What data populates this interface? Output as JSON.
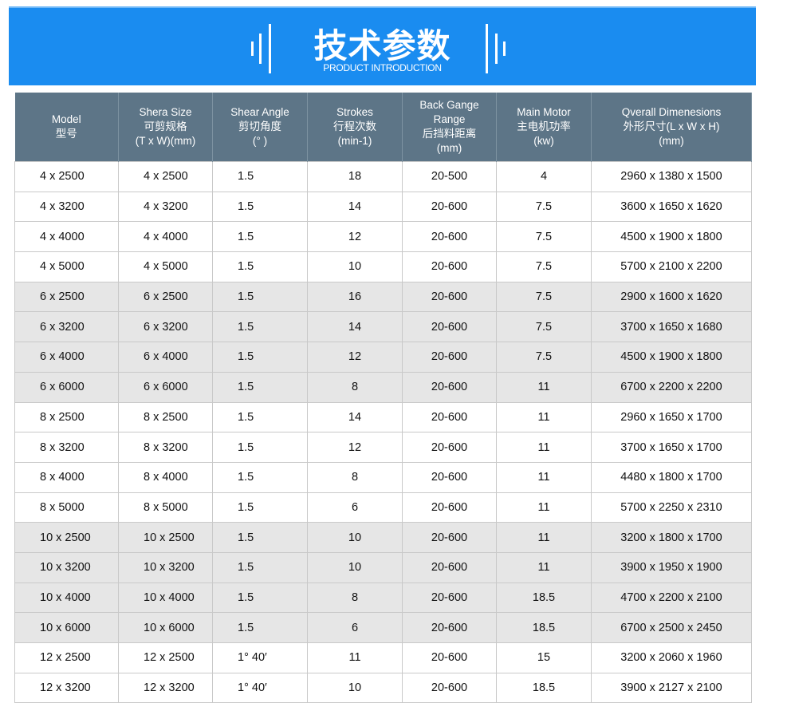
{
  "banner": {
    "title": "技术参数",
    "subtitle": "PRODUCT INTRODUCTION",
    "color": "#1a8cf0"
  },
  "table": {
    "header_color": "#5d7587",
    "columns": [
      [
        "Model",
        "型号"
      ],
      [
        "Shera Size",
        "可剪规格",
        "(T x W)(mm)"
      ],
      [
        "Shear Angle",
        "剪切角度",
        "(° )"
      ],
      [
        "Strokes",
        "行程次数",
        "(min-1)"
      ],
      [
        "Back Gange",
        "Range",
        "后挡料距离",
        "(mm)"
      ],
      [
        "Main Motor",
        "主电机功率",
        "(kw)"
      ],
      [
        "Qverall Dimenesions",
        "外形尺寸(L x W x H)",
        "(mm)"
      ]
    ],
    "rows": [
      [
        "4 x 2500",
        "4 x 2500",
        "1.5",
        "18",
        "20-500",
        "4",
        "2960 x 1380 x 1500"
      ],
      [
        "4 x 3200",
        "4 x 3200",
        "1.5",
        "14",
        "20-600",
        "7.5",
        "3600 x 1650 x 1620"
      ],
      [
        "4 x 4000",
        "4 x 4000",
        "1.5",
        "12",
        "20-600",
        "7.5",
        "4500 x 1900 x 1800"
      ],
      [
        "4 x 5000",
        "4 x 5000",
        "1.5",
        "10",
        "20-600",
        "7.5",
        "5700 x 2100 x 2200"
      ],
      [
        "6 x 2500",
        "6 x 2500",
        "1.5",
        "16",
        "20-600",
        "7.5",
        "2900 x 1600 x 1620"
      ],
      [
        "6 x 3200",
        "6 x 3200",
        "1.5",
        "14",
        "20-600",
        "7.5",
        "3700 x 1650 x 1680"
      ],
      [
        "6 x 4000",
        "6 x 4000",
        "1.5",
        "12",
        "20-600",
        "7.5",
        "4500 x 1900 x 1800"
      ],
      [
        "6 x 6000",
        "6 x 6000",
        "1.5",
        "8",
        "20-600",
        "11",
        "6700 x 2200 x 2200"
      ],
      [
        "8 x 2500",
        "8 x 2500",
        "1.5",
        "14",
        "20-600",
        "11",
        "2960 x 1650 x 1700"
      ],
      [
        "8 x 3200",
        "8 x 3200",
        "1.5",
        "12",
        "20-600",
        "11",
        "3700 x 1650 x 1700"
      ],
      [
        "8 x 4000",
        "8 x 4000",
        "1.5",
        "8",
        "20-600",
        "11",
        "4480 x 1800 x 1700"
      ],
      [
        "8 x 5000",
        "8 x 5000",
        "1.5",
        "6",
        "20-600",
        "11",
        "5700 x 2250 x 2310"
      ],
      [
        "10 x 2500",
        "10 x 2500",
        "1.5",
        "10",
        "20-600",
        "11",
        "3200 x 1800 x 1700"
      ],
      [
        "10 x 3200",
        "10 x 3200",
        "1.5",
        "10",
        "20-600",
        "11",
        "3900 x 1950 x 1900"
      ],
      [
        "10 x 4000",
        "10 x 4000",
        "1.5",
        "8",
        "20-600",
        "18.5",
        "4700 x 2200 x 2100"
      ],
      [
        "10 x 6000",
        "10 x 6000",
        "1.5",
        "6",
        "20-600",
        "18.5",
        "6700 x 2500 x 2450"
      ],
      [
        "12 x 2500",
        "12 x 2500",
        "1° 40′",
        "11",
        "20-600",
        "15",
        "3200 x 2060 x 1960"
      ],
      [
        "12 x 3200",
        "12 x 3200",
        "1° 40′",
        "10",
        "20-600",
        "18.5",
        "3900 x 2127 x 2100"
      ]
    ],
    "shaded_rows": [
      4,
      5,
      6,
      7,
      12,
      13,
      14,
      15
    ]
  }
}
